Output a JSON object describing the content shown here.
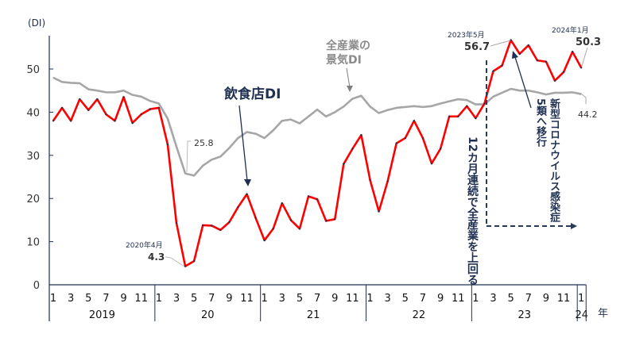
{
  "chart_data": {
    "type": "line",
    "ylabel": "(DI)",
    "xlabel": "年",
    "ylim": [
      0,
      57
    ],
    "yticks": [
      0,
      10,
      20,
      30,
      40,
      50
    ],
    "month_ticks": [
      "1",
      "3",
      "5",
      "7",
      "9",
      "11"
    ],
    "years": [
      "2019",
      "20",
      "21",
      "22",
      "23",
      "24"
    ],
    "x_start": "2019-01",
    "x_end": "2024-01",
    "series": [
      {
        "name": "飲食店DI",
        "color": "#ff0000",
        "values": [
          38,
          41,
          38,
          43,
          40.5,
          43,
          39.5,
          38,
          43.5,
          37.5,
          39.5,
          40.7,
          41,
          32.5,
          14.3,
          4.3,
          5.5,
          13.8,
          13.7,
          12.7,
          14.5,
          18,
          21,
          15.5,
          10.3,
          13,
          18.9,
          15,
          13,
          20.5,
          19.8,
          14.8,
          15.2,
          28,
          31.5,
          34.7,
          24.3,
          17,
          24,
          32.8,
          34,
          38,
          34,
          28.1,
          31.5,
          39,
          39,
          41.4,
          38.6,
          42,
          49.5,
          50.8,
          56.7,
          53.5,
          55.5,
          52,
          51.7,
          47.3,
          49.3,
          54,
          50.3
        ]
      },
      {
        "name": "全産業の景気DI",
        "color": "#a6a6a6",
        "values": [
          48,
          47,
          46.8,
          46.7,
          45.3,
          45,
          44.6,
          44.6,
          45,
          44,
          43.6,
          42.6,
          42,
          38.5,
          32,
          25.8,
          25.3,
          27.6,
          29,
          29.7,
          31.7,
          34,
          35.4,
          35,
          34,
          35.8,
          38,
          38.3,
          37.4,
          39,
          40.6,
          39,
          40,
          41.3,
          43.1,
          43.8,
          41.3,
          39.8,
          40.5,
          41,
          41.2,
          41.4,
          41.2,
          41.4,
          42,
          42.5,
          43,
          42.8,
          41.8,
          41.8,
          43.6,
          44.5,
          45.4,
          45,
          45,
          44.6,
          44.1,
          44.5,
          44.5,
          44.6,
          44.2
        ]
      }
    ],
    "annotations": {
      "restaurant_label": "飲食店DI",
      "all_industry_label_1": "全産業の",
      "all_industry_label_2": "景気DI",
      "gray_min": "25.8",
      "red_min_date": "2020年4月",
      "red_min": "4.3",
      "red_max_date": "2023年5月",
      "red_max": "56.7",
      "red_last_date": "2024年1月",
      "red_last": "50.3",
      "gray_last": "44.2",
      "streak_note": "12カ月連続で全産業を上回る",
      "covid_note": "新型コロナウイルス感染症",
      "class5_note": "5類へ移行"
    }
  }
}
